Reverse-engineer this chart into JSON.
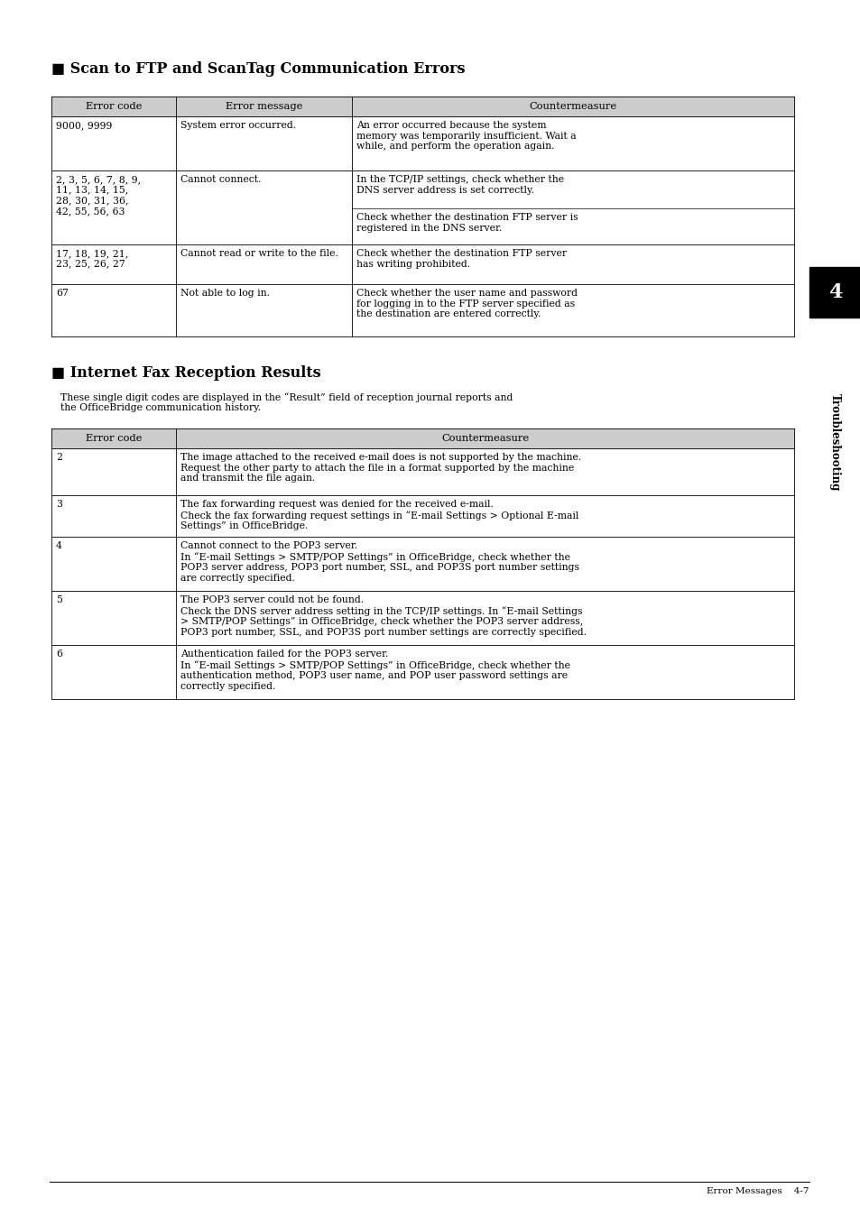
{
  "page_bg": "#ffffff",
  "section1_title": "■ Scan to FTP and ScanTag Communication Errors",
  "table1_header": [
    "Error code",
    "Error message",
    "Countermeasure"
  ],
  "table2_header": [
    "Error code",
    "Countermeasure"
  ],
  "section2_title": "■ Internet Fax Reception Results",
  "section2_desc": "These single digit codes are displayed in the “Result” field of reception journal reports and\nthe OfficeBridge communication history.",
  "header_bg": "#cccccc",
  "body_font_size": 7.8,
  "header_font_size": 8.2,
  "title_font_size": 11.5,
  "footer_text_right": "Error Messages    4-7",
  "side_number": "4",
  "side_tab_text": "Troubleshooting"
}
